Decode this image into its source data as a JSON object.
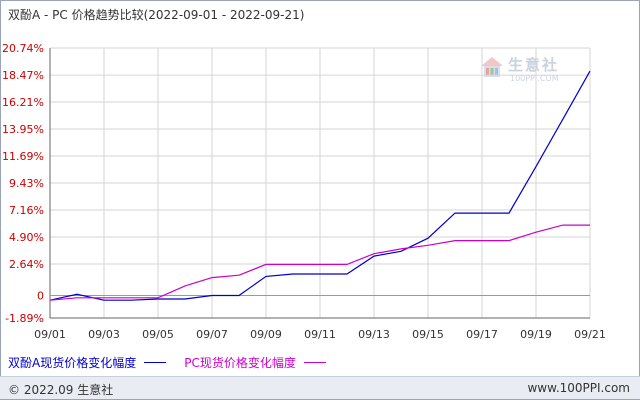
{
  "title": "双酚A - PC 价格趋势比较(2022-09-01 - 2022-09-21)",
  "watermark": {
    "name": "生意社",
    "url": "100PPI.COM"
  },
  "legend": {
    "series1": "双酚A现货价格变化幅度",
    "series2": "PC现货价格变化幅度"
  },
  "footer": {
    "left": "© 2022.09 生意社",
    "right": "www.100PPI.com"
  },
  "colors": {
    "series1": "#0000cc",
    "series2": "#cc00cc",
    "y_labels": "#cc0000",
    "grid": "#d6d6d6",
    "axis": "#666666"
  },
  "chart_data": {
    "type": "line",
    "title": "双酚A - PC 价格趋势比较(2022-09-01 - 2022-09-21)",
    "xlabel": "",
    "ylabel": "",
    "x_ticks": [
      "09/01",
      "09/03",
      "09/05",
      "09/07",
      "09/09",
      "09/11",
      "09/13",
      "09/15",
      "09/17",
      "09/19",
      "09/21"
    ],
    "y_ticks": [
      "-1.89%",
      "0",
      "2.64%",
      "4.90%",
      "7.16%",
      "9.43%",
      "11.69%",
      "13.95%",
      "16.21%",
      "18.47%",
      "20.74%"
    ],
    "y_tick_values": [
      -1.89,
      0,
      2.64,
      4.9,
      7.16,
      9.43,
      11.69,
      13.95,
      16.21,
      18.47,
      20.74
    ],
    "ylim": [
      -1.89,
      20.74
    ],
    "xlim": [
      "09/01",
      "09/21"
    ],
    "grid": true,
    "legend_position": "bottom",
    "series": [
      {
        "name": "双酚A现货价格变化幅度",
        "color": "#0000cc",
        "x": [
          "09/01",
          "09/02",
          "09/03",
          "09/04",
          "09/05",
          "09/06",
          "09/07",
          "09/08",
          "09/09",
          "09/10",
          "09/11",
          "09/12",
          "09/13",
          "09/14",
          "09/15",
          "09/16",
          "09/17",
          "09/18",
          "09/19",
          "09/20",
          "09/21"
        ],
        "values": [
          -0.4,
          0.1,
          -0.4,
          -0.4,
          -0.3,
          -0.3,
          0.0,
          0.0,
          1.6,
          1.8,
          1.8,
          1.8,
          3.3,
          3.7,
          4.8,
          6.9,
          6.9,
          6.9,
          10.8,
          14.8,
          18.8
        ]
      },
      {
        "name": "PC现货价格变化幅度",
        "color": "#cc00cc",
        "x": [
          "09/01",
          "09/02",
          "09/03",
          "09/04",
          "09/05",
          "09/06",
          "09/07",
          "09/08",
          "09/09",
          "09/10",
          "09/11",
          "09/12",
          "09/13",
          "09/14",
          "09/15",
          "09/16",
          "09/17",
          "09/18",
          "09/19",
          "09/20",
          "09/21"
        ],
        "values": [
          -0.4,
          -0.2,
          -0.2,
          -0.2,
          -0.2,
          0.8,
          1.5,
          1.7,
          2.6,
          2.6,
          2.6,
          2.6,
          3.5,
          3.9,
          4.2,
          4.6,
          4.6,
          4.6,
          5.3,
          5.9,
          5.9
        ]
      }
    ]
  }
}
